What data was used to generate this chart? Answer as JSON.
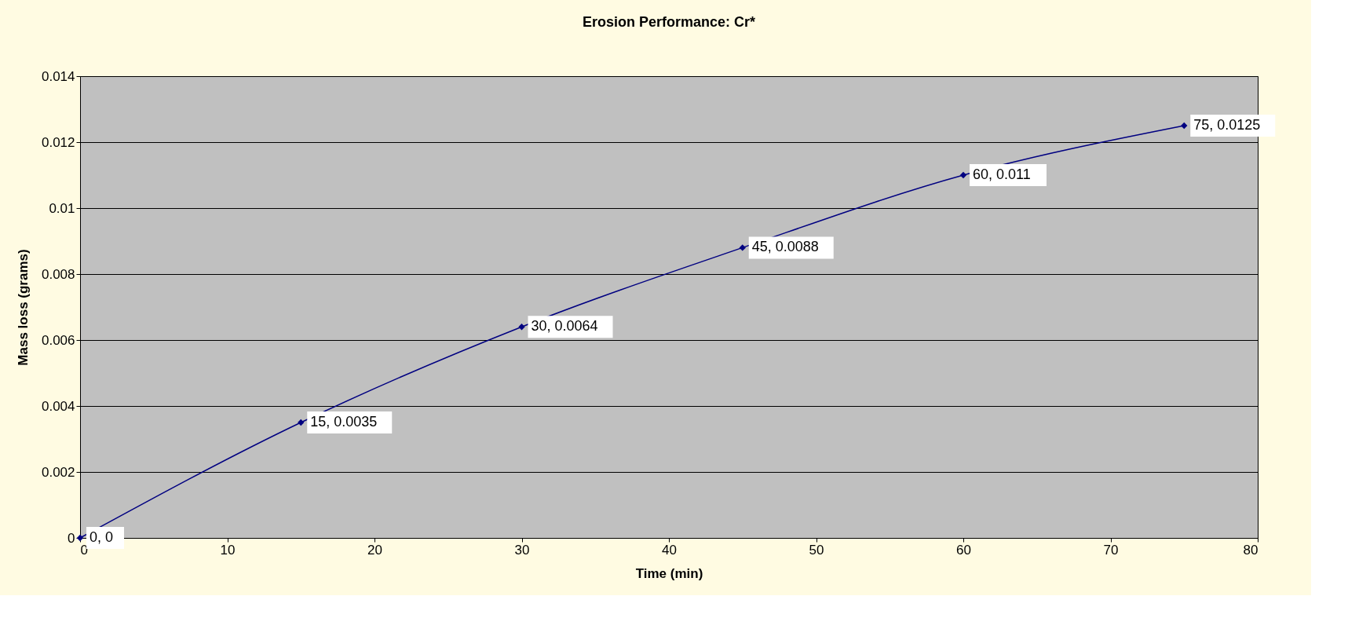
{
  "chart_data": {
    "type": "line",
    "title": "Erosion Performance: Cr*",
    "xlabel": "Time (min)",
    "ylabel": "Mass loss (grams)",
    "x": [
      0,
      15,
      30,
      45,
      60,
      75
    ],
    "series": [
      {
        "color": "#000080",
        "values": [
          0,
          0.0035,
          0.0064,
          0.0088,
          0.011,
          0.0125
        ],
        "value_labels": [
          "0, 0",
          "15, 0.0035",
          "30, 0.0064",
          "45, 0.0088",
          "60, 0.011",
          "75, 0.0125"
        ]
      }
    ],
    "xlim": [
      0,
      80
    ],
    "xticks": [
      0,
      10,
      20,
      30,
      40,
      50,
      60,
      70,
      80
    ],
    "ylim": [
      0,
      0.014
    ],
    "yticks": [
      0,
      0.002,
      0.004,
      0.006,
      0.008,
      0.01,
      0.012,
      0.014
    ],
    "grid": "y",
    "marker": "diamond",
    "line_style": "solid"
  }
}
